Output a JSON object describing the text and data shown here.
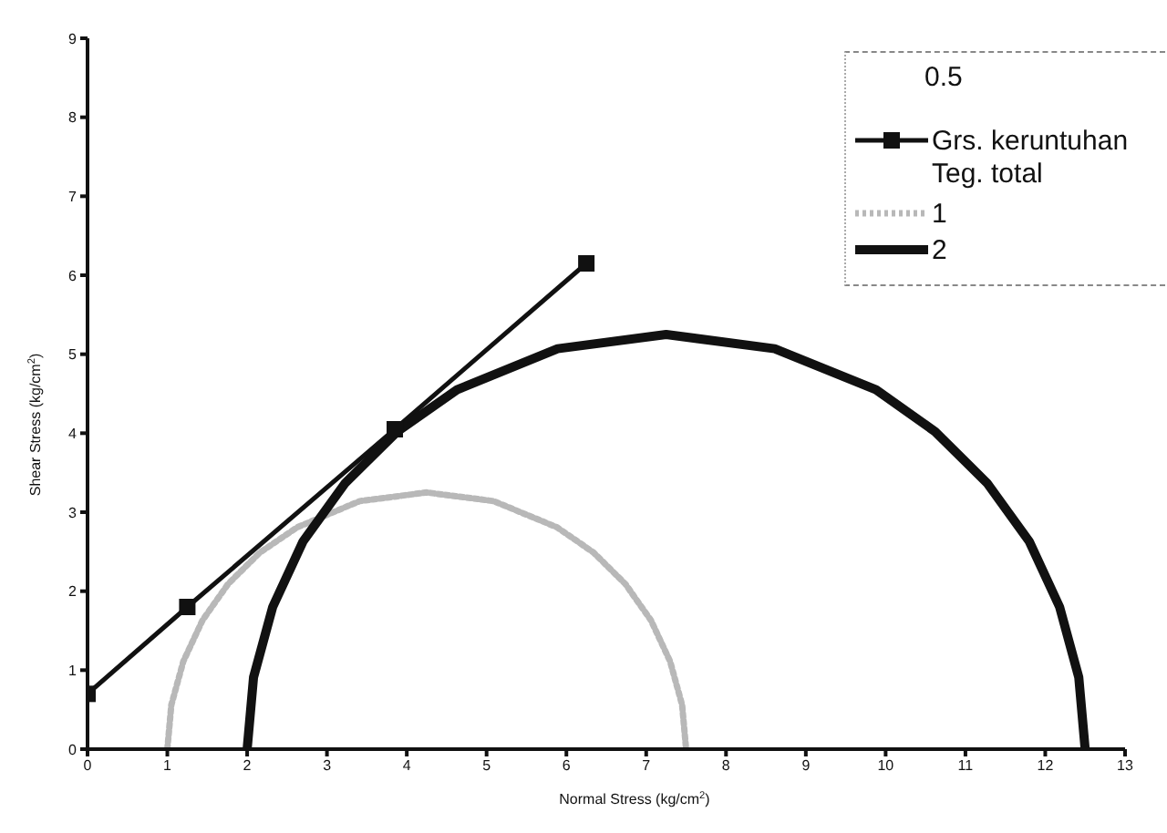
{
  "chart_data": {
    "type": "line",
    "xlabel": "Normal Stress (kg/cm$^{2}$)",
    "ylabel": "Shear Stress (kg/cm$^{2}$)",
    "legend_title": "0.5",
    "annotations": [
      "Teg. total"
    ],
    "xlim": [
      0,
      13
    ],
    "xticks": [
      0,
      1,
      2,
      3,
      4,
      5,
      6,
      7,
      8,
      9,
      10,
      11,
      12,
      13
    ],
    "ylim": [
      0,
      9
    ],
    "yticks": [
      0,
      1,
      2,
      3,
      4,
      5,
      6,
      7,
      8,
      9
    ],
    "grid": false,
    "legend": "top right",
    "series": [
      {
        "name": "Grs. keruntuhan",
        "color": "#111111",
        "marker": "square",
        "line_style": "solid",
        "x": [
          0,
          1.25,
          3.85,
          6.25
        ],
        "values": [
          0.7,
          1.8,
          4.05,
          6.15
        ]
      },
      {
        "name": "1",
        "color": "#b8b8b8",
        "marker": "none",
        "line_style": "dotted",
        "x": [
          1.0,
          1.05,
          1.2,
          1.44,
          1.76,
          2.16,
          2.63,
          3.41,
          4.25,
          5.09,
          5.88,
          6.34,
          6.74,
          7.06,
          7.3,
          7.45,
          7.5
        ],
        "values": [
          0,
          0.56,
          1.11,
          1.63,
          2.09,
          2.49,
          2.81,
          3.14,
          3.25,
          3.14,
          2.81,
          2.49,
          2.09,
          1.63,
          1.11,
          0.56,
          0
        ]
      },
      {
        "name": "2",
        "color": "#111111",
        "marker": "none",
        "line_style": "solid",
        "x": [
          2.0,
          2.08,
          2.32,
          2.7,
          3.23,
          3.88,
          4.63,
          5.89,
          7.25,
          8.61,
          9.88,
          10.62,
          11.27,
          11.8,
          12.18,
          12.42,
          12.5
        ],
        "values": [
          0,
          0.91,
          1.8,
          2.63,
          3.37,
          4.02,
          4.55,
          5.07,
          5.25,
          5.07,
          4.55,
          4.02,
          3.37,
          2.63,
          1.8,
          0.91,
          0
        ]
      }
    ]
  }
}
